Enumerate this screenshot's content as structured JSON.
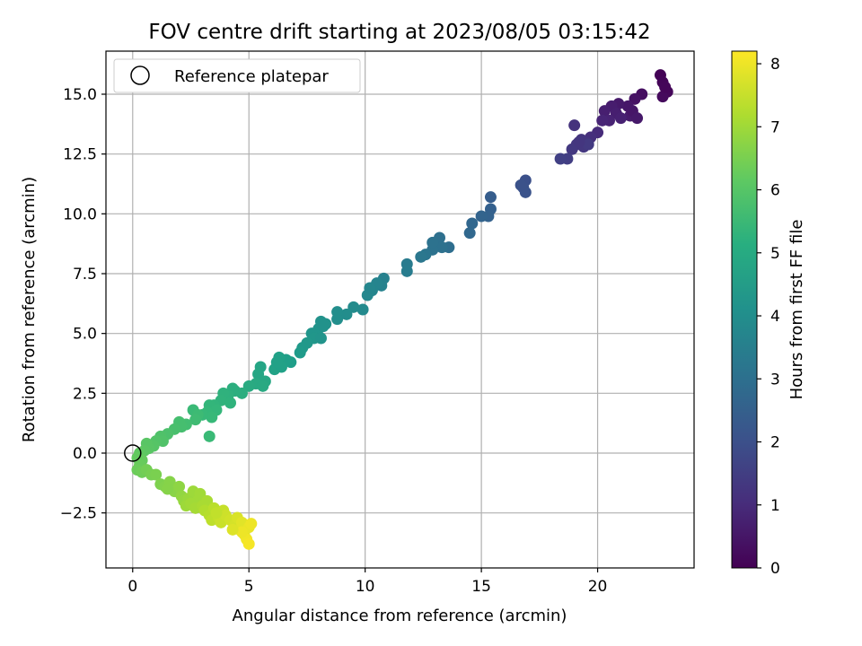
{
  "chart_data": {
    "type": "scatter",
    "title": "FOV centre drift starting at 2023/08/05 03:15:42",
    "xlabel": "Angular distance from reference (arcmin)",
    "ylabel": "Rotation from reference (arcmin)",
    "colorbar_label": "Hours from first FF file",
    "colormap": "viridis",
    "xlim": [
      -1.15,
      24.15
    ],
    "ylim": [
      -4.8,
      16.8
    ],
    "clim": [
      0,
      8.2
    ],
    "x_ticks": [
      0,
      5,
      10,
      15,
      20
    ],
    "x_tick_labels": [
      "0",
      "5",
      "10",
      "15",
      "20"
    ],
    "y_ticks": [
      -2.5,
      0,
      2.5,
      5,
      7.5,
      10,
      12.5,
      15
    ],
    "y_tick_labels": [
      "−2.5",
      "0.0",
      "2.5",
      "5.0",
      "7.5",
      "10.0",
      "12.5",
      "15.0"
    ],
    "colorbar_ticks": [
      0,
      1,
      2,
      3,
      4,
      5,
      6,
      7,
      8
    ],
    "colorbar_tick_labels": [
      "0",
      "1",
      "2",
      "3",
      "4",
      "5",
      "6",
      "7",
      "8"
    ],
    "grid": true,
    "legend": {
      "placement": "top-left",
      "entries": [
        "Reference platepar"
      ]
    },
    "reference_point": {
      "x": 0,
      "y": 0
    },
    "points": [
      {
        "x": 22.7,
        "y": 15.8,
        "h": 0.05
      },
      {
        "x": 22.8,
        "y": 15.5,
        "h": 0.1
      },
      {
        "x": 23.0,
        "y": 15.1,
        "h": 0.15
      },
      {
        "x": 22.8,
        "y": 14.9,
        "h": 0.2
      },
      {
        "x": 22.9,
        "y": 15.3,
        "h": 0.12
      },
      {
        "x": 21.9,
        "y": 15.0,
        "h": 0.3
      },
      {
        "x": 21.6,
        "y": 14.8,
        "h": 0.4
      },
      {
        "x": 21.3,
        "y": 14.5,
        "h": 0.5
      },
      {
        "x": 20.9,
        "y": 14.6,
        "h": 0.55
      },
      {
        "x": 21.4,
        "y": 14.1,
        "h": 0.6
      },
      {
        "x": 20.6,
        "y": 14.5,
        "h": 0.65
      },
      {
        "x": 20.3,
        "y": 14.3,
        "h": 0.7
      },
      {
        "x": 20.8,
        "y": 14.2,
        "h": 0.7
      },
      {
        "x": 21.0,
        "y": 14.0,
        "h": 0.75
      },
      {
        "x": 20.5,
        "y": 13.9,
        "h": 0.8
      },
      {
        "x": 20.2,
        "y": 13.9,
        "h": 0.85
      },
      {
        "x": 21.5,
        "y": 14.3,
        "h": 0.5
      },
      {
        "x": 21.7,
        "y": 14.0,
        "h": 0.55
      },
      {
        "x": 20.0,
        "y": 13.4,
        "h": 1.0
      },
      {
        "x": 19.7,
        "y": 13.2,
        "h": 1.1
      },
      {
        "x": 19.5,
        "y": 13.0,
        "h": 1.2
      },
      {
        "x": 19.3,
        "y": 13.1,
        "h": 1.25
      },
      {
        "x": 19.1,
        "y": 12.9,
        "h": 1.3
      },
      {
        "x": 19.4,
        "y": 12.8,
        "h": 1.3
      },
      {
        "x": 18.9,
        "y": 12.7,
        "h": 1.35
      },
      {
        "x": 19.0,
        "y": 13.7,
        "h": 1.2
      },
      {
        "x": 19.6,
        "y": 12.9,
        "h": 1.4
      },
      {
        "x": 18.7,
        "y": 12.3,
        "h": 1.5
      },
      {
        "x": 18.4,
        "y": 12.3,
        "h": 1.55
      },
      {
        "x": 19.2,
        "y": 13.0,
        "h": 1.28
      },
      {
        "x": 16.9,
        "y": 11.4,
        "h": 2.0
      },
      {
        "x": 16.8,
        "y": 11.1,
        "h": 2.05
      },
      {
        "x": 16.9,
        "y": 10.9,
        "h": 2.1
      },
      {
        "x": 16.7,
        "y": 11.2,
        "h": 2.05
      },
      {
        "x": 15.4,
        "y": 10.7,
        "h": 2.4
      },
      {
        "x": 15.4,
        "y": 10.2,
        "h": 2.5
      },
      {
        "x": 15.3,
        "y": 9.9,
        "h": 2.55
      },
      {
        "x": 15.0,
        "y": 9.9,
        "h": 2.6
      },
      {
        "x": 14.6,
        "y": 9.6,
        "h": 2.7
      },
      {
        "x": 14.5,
        "y": 9.2,
        "h": 2.75
      },
      {
        "x": 13.6,
        "y": 8.6,
        "h": 2.95
      },
      {
        "x": 13.2,
        "y": 9.0,
        "h": 3.0
      },
      {
        "x": 13.3,
        "y": 8.6,
        "h": 3.05
      },
      {
        "x": 12.9,
        "y": 8.5,
        "h": 3.1
      },
      {
        "x": 12.6,
        "y": 8.3,
        "h": 3.2
      },
      {
        "x": 12.4,
        "y": 8.2,
        "h": 3.25
      },
      {
        "x": 12.9,
        "y": 8.8,
        "h": 3.08
      },
      {
        "x": 11.8,
        "y": 7.9,
        "h": 3.4
      },
      {
        "x": 11.8,
        "y": 7.6,
        "h": 3.45
      },
      {
        "x": 10.8,
        "y": 7.3,
        "h": 3.6
      },
      {
        "x": 10.7,
        "y": 7.0,
        "h": 3.65
      },
      {
        "x": 10.5,
        "y": 7.1,
        "h": 3.7
      },
      {
        "x": 10.3,
        "y": 6.8,
        "h": 3.75
      },
      {
        "x": 10.1,
        "y": 6.6,
        "h": 3.8
      },
      {
        "x": 10.2,
        "y": 6.9,
        "h": 3.78
      },
      {
        "x": 9.9,
        "y": 6.0,
        "h": 3.9
      },
      {
        "x": 9.5,
        "y": 6.1,
        "h": 3.95
      },
      {
        "x": 9.2,
        "y": 5.8,
        "h": 4.0
      },
      {
        "x": 8.8,
        "y": 5.6,
        "h": 4.05
      },
      {
        "x": 8.8,
        "y": 5.9,
        "h": 4.05
      },
      {
        "x": 8.3,
        "y": 5.4,
        "h": 4.15
      },
      {
        "x": 8.1,
        "y": 5.5,
        "h": 4.15
      },
      {
        "x": 8.0,
        "y": 5.2,
        "h": 4.2
      },
      {
        "x": 7.9,
        "y": 5.0,
        "h": 4.25
      },
      {
        "x": 7.7,
        "y": 5.0,
        "h": 4.25
      },
      {
        "x": 7.8,
        "y": 4.8,
        "h": 4.3
      },
      {
        "x": 7.5,
        "y": 4.6,
        "h": 4.35
      },
      {
        "x": 7.3,
        "y": 4.4,
        "h": 4.4
      },
      {
        "x": 7.2,
        "y": 4.2,
        "h": 4.45
      },
      {
        "x": 8.1,
        "y": 4.8,
        "h": 4.22
      },
      {
        "x": 8.2,
        "y": 5.3,
        "h": 4.18
      },
      {
        "x": 6.8,
        "y": 3.8,
        "h": 4.55
      },
      {
        "x": 6.6,
        "y": 3.9,
        "h": 4.6
      },
      {
        "x": 6.3,
        "y": 4.0,
        "h": 4.65
      },
      {
        "x": 6.1,
        "y": 3.5,
        "h": 4.7
      },
      {
        "x": 6.4,
        "y": 3.6,
        "h": 4.65
      },
      {
        "x": 6.2,
        "y": 3.8,
        "h": 4.68
      },
      {
        "x": 5.5,
        "y": 3.6,
        "h": 4.8
      },
      {
        "x": 5.4,
        "y": 3.3,
        "h": 4.85
      },
      {
        "x": 5.7,
        "y": 3.0,
        "h": 4.9
      },
      {
        "x": 5.3,
        "y": 2.9,
        "h": 4.95
      },
      {
        "x": 5.0,
        "y": 2.8,
        "h": 5.0
      },
      {
        "x": 5.6,
        "y": 2.8,
        "h": 4.95
      },
      {
        "x": 4.7,
        "y": 2.5,
        "h": 5.1
      },
      {
        "x": 4.4,
        "y": 2.6,
        "h": 5.15
      },
      {
        "x": 4.3,
        "y": 2.7,
        "h": 5.15
      },
      {
        "x": 4.1,
        "y": 2.4,
        "h": 5.2
      },
      {
        "x": 3.9,
        "y": 2.5,
        "h": 5.25
      },
      {
        "x": 3.8,
        "y": 2.2,
        "h": 5.3
      },
      {
        "x": 4.2,
        "y": 2.1,
        "h": 5.28
      },
      {
        "x": 3.5,
        "y": 2.0,
        "h": 5.35
      },
      {
        "x": 3.3,
        "y": 2.0,
        "h": 5.4
      },
      {
        "x": 3.6,
        "y": 1.8,
        "h": 5.42
      },
      {
        "x": 3.2,
        "y": 1.7,
        "h": 5.45
      },
      {
        "x": 3.4,
        "y": 1.5,
        "h": 5.5
      },
      {
        "x": 3.0,
        "y": 1.6,
        "h": 5.5
      },
      {
        "x": 3.3,
        "y": 0.7,
        "h": 5.55
      },
      {
        "x": 2.6,
        "y": 1.8,
        "h": 5.55
      },
      {
        "x": 2.8,
        "y": 1.6,
        "h": 5.6
      },
      {
        "x": 2.7,
        "y": 1.4,
        "h": 5.65
      },
      {
        "x": 2.3,
        "y": 1.2,
        "h": 5.7
      },
      {
        "x": 2.0,
        "y": 1.3,
        "h": 5.75
      },
      {
        "x": 2.1,
        "y": 1.1,
        "h": 5.75
      },
      {
        "x": 1.8,
        "y": 1.0,
        "h": 5.8
      },
      {
        "x": 1.5,
        "y": 0.8,
        "h": 5.85
      },
      {
        "x": 1.2,
        "y": 0.7,
        "h": 5.9
      },
      {
        "x": 1.3,
        "y": 0.5,
        "h": 5.92
      },
      {
        "x": 1.0,
        "y": 0.5,
        "h": 5.95
      },
      {
        "x": 0.9,
        "y": 0.3,
        "h": 6.0
      },
      {
        "x": 0.7,
        "y": 0.2,
        "h": 6.05
      },
      {
        "x": 0.6,
        "y": 0.4,
        "h": 6.05
      },
      {
        "x": 0.5,
        "y": 0.1,
        "h": 6.1
      },
      {
        "x": 0.3,
        "y": 0.0,
        "h": 6.15
      },
      {
        "x": 0.2,
        "y": -0.2,
        "h": 6.2
      },
      {
        "x": 0.4,
        "y": -0.3,
        "h": 6.25
      },
      {
        "x": 0.3,
        "y": -0.5,
        "h": 6.3
      },
      {
        "x": 0.2,
        "y": -0.7,
        "h": 6.35
      },
      {
        "x": 0.4,
        "y": -0.8,
        "h": 6.4
      },
      {
        "x": 0.6,
        "y": -0.7,
        "h": 6.45
      },
      {
        "x": 0.8,
        "y": -0.9,
        "h": 6.5
      },
      {
        "x": 1.0,
        "y": -0.9,
        "h": 6.55
      },
      {
        "x": 1.2,
        "y": -1.3,
        "h": 6.6
      },
      {
        "x": 1.4,
        "y": -1.4,
        "h": 6.65
      },
      {
        "x": 1.6,
        "y": -1.2,
        "h": 6.7
      },
      {
        "x": 1.8,
        "y": -1.6,
        "h": 6.75
      },
      {
        "x": 1.5,
        "y": -1.5,
        "h": 6.7
      },
      {
        "x": 2.0,
        "y": -1.4,
        "h": 6.8
      },
      {
        "x": 2.1,
        "y": -1.8,
        "h": 6.85
      },
      {
        "x": 2.2,
        "y": -2.0,
        "h": 6.9
      },
      {
        "x": 2.4,
        "y": -1.9,
        "h": 6.95
      },
      {
        "x": 2.6,
        "y": -1.6,
        "h": 7.0
      },
      {
        "x": 2.8,
        "y": -2.0,
        "h": 7.05
      },
      {
        "x": 2.9,
        "y": -1.7,
        "h": 7.05
      },
      {
        "x": 2.3,
        "y": -2.2,
        "h": 7.0
      },
      {
        "x": 2.5,
        "y": -2.1,
        "h": 7.05
      },
      {
        "x": 2.7,
        "y": -2.3,
        "h": 7.1
      },
      {
        "x": 3.0,
        "y": -2.2,
        "h": 7.15
      },
      {
        "x": 3.2,
        "y": -2.0,
        "h": 7.15
      },
      {
        "x": 3.1,
        "y": -2.4,
        "h": 7.25
      },
      {
        "x": 3.3,
        "y": -2.6,
        "h": 7.3
      },
      {
        "x": 3.5,
        "y": -2.3,
        "h": 7.35
      },
      {
        "x": 3.4,
        "y": -2.8,
        "h": 7.4
      },
      {
        "x": 3.7,
        "y": -2.7,
        "h": 7.5
      },
      {
        "x": 3.9,
        "y": -2.4,
        "h": 7.5
      },
      {
        "x": 3.8,
        "y": -2.9,
        "h": 7.55
      },
      {
        "x": 4.0,
        "y": -2.6,
        "h": 7.6
      },
      {
        "x": 4.2,
        "y": -2.8,
        "h": 7.65
      },
      {
        "x": 4.4,
        "y": -3.0,
        "h": 7.7
      },
      {
        "x": 4.5,
        "y": -2.7,
        "h": 7.75
      },
      {
        "x": 4.6,
        "y": -3.2,
        "h": 7.8
      },
      {
        "x": 4.7,
        "y": -2.9,
        "h": 7.85
      },
      {
        "x": 4.8,
        "y": -3.4,
        "h": 7.9
      },
      {
        "x": 5.0,
        "y": -3.1,
        "h": 7.95
      },
      {
        "x": 5.1,
        "y": -2.95,
        "h": 8.0
      },
      {
        "x": 4.9,
        "y": -3.6,
        "h": 8.05
      },
      {
        "x": 5.0,
        "y": -3.8,
        "h": 8.1
      },
      {
        "x": 4.7,
        "y": -3.3,
        "h": 8.0
      },
      {
        "x": 4.3,
        "y": -3.2,
        "h": 7.8
      },
      {
        "x": 3.6,
        "y": -2.5,
        "h": 7.45
      }
    ]
  }
}
